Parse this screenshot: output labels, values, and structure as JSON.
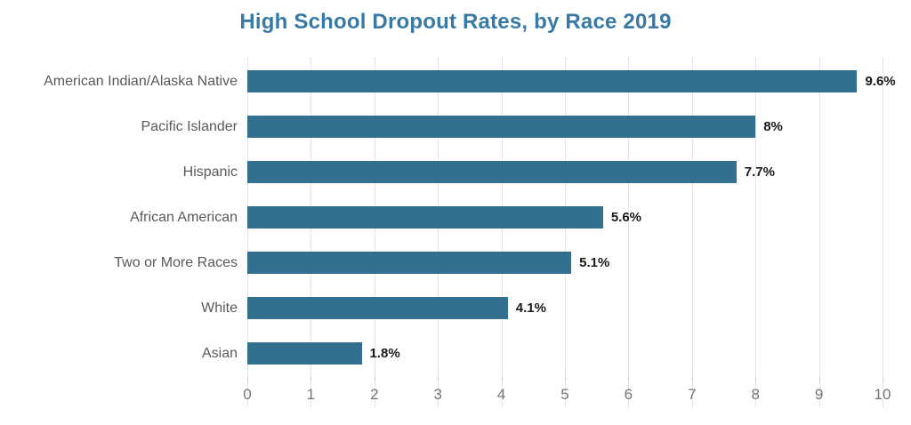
{
  "chart_data": {
    "type": "bar",
    "orientation": "horizontal",
    "title": "High School Dropout Rates, by Race 2019",
    "categories": [
      "American Indian/Alaska Native",
      "Pacific Islander",
      "Hispanic",
      "African American",
      "Two or More Races",
      "White",
      "Asian"
    ],
    "values": [
      9.6,
      8,
      7.7,
      5.6,
      5.1,
      4.1,
      1.8
    ],
    "value_labels": [
      "9.6%",
      "8%",
      "7.7%",
      "5.6%",
      "5.1%",
      "4.1%",
      "1.8%"
    ],
    "xlabel": "",
    "ylabel": "",
    "xlim": [
      0,
      10
    ],
    "x_ticks": [
      0,
      1,
      2,
      3,
      4,
      5,
      6,
      7,
      8,
      9,
      10
    ],
    "grid": "vertical",
    "legend": "none",
    "colors": {
      "bar": "#33708F",
      "title": "#3879A6",
      "category_label": "#595959",
      "value_label": "#1A1A1A",
      "tick_label": "#757575",
      "gridline": "#E5E5E5"
    }
  }
}
